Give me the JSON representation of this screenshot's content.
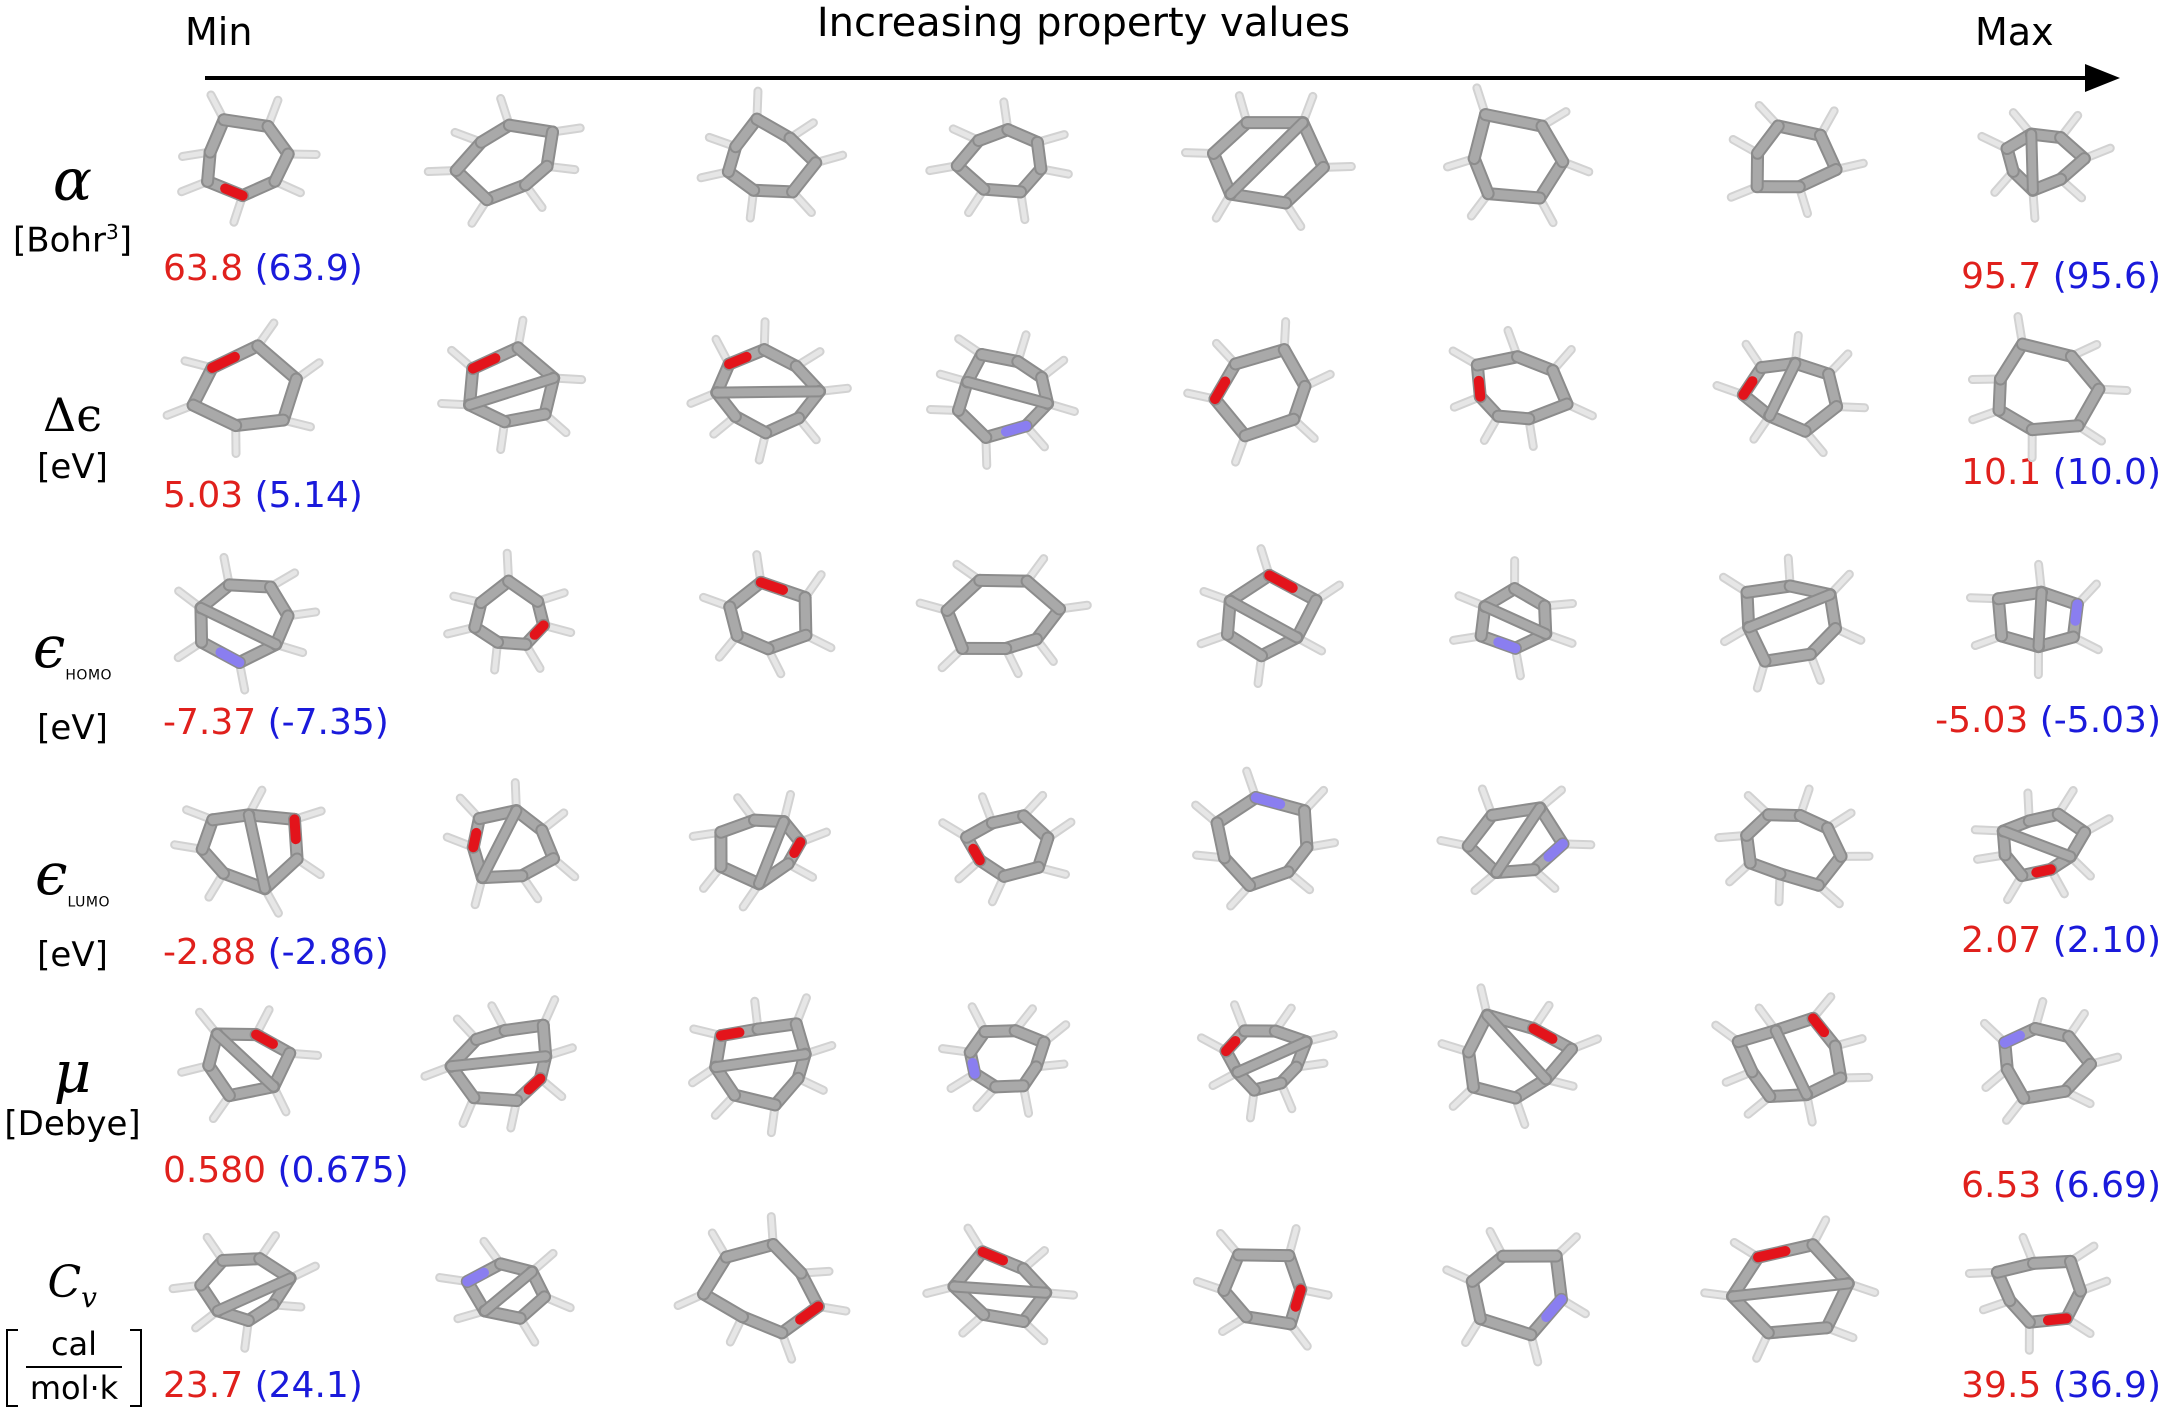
{
  "header": {
    "min_label": "Min",
    "max_label": "Max",
    "title": "Increasing property values"
  },
  "rows": [
    {
      "symbol": "α",
      "subscript": "",
      "unit": "[Bohr",
      "unit_sup": "3",
      "unit_tail": "]",
      "min_value": "63.8",
      "min_pred": "(63.9)",
      "max_value": "95.7",
      "max_pred": "(95.6)"
    },
    {
      "symbol": "Δϵ",
      "subscript": "",
      "unit": "[eV]",
      "unit_sup": "",
      "unit_tail": "",
      "min_value": "5.03",
      "min_pred": "(5.14)",
      "max_value": "10.1",
      "max_pred": "(10.0)"
    },
    {
      "symbol": "ϵ",
      "subscript": "HOMO",
      "unit": "[eV]",
      "unit_sup": "",
      "unit_tail": "",
      "min_value": "-7.37",
      "min_pred": "(-7.35)",
      "max_value": "-5.03",
      "max_pred": "(-5.03)"
    },
    {
      "symbol": "ϵ",
      "subscript": "LUMO",
      "unit": "[eV]",
      "unit_sup": "",
      "unit_tail": "",
      "min_value": "-2.88",
      "min_pred": "(-2.86)",
      "max_value": "2.07",
      "max_pred": "(2.10)"
    },
    {
      "symbol": "μ",
      "subscript": "",
      "unit": "[Debye]",
      "unit_sup": "",
      "unit_tail": "",
      "min_value": "0.580",
      "min_pred": "(0.675)",
      "max_value": "6.53",
      "max_pred": "(6.69)"
    },
    {
      "symbol": "C",
      "subscript": "v",
      "unit": "",
      "unit_sup": "",
      "unit_tail": "",
      "unit_num": "cal",
      "unit_den": "mol·k",
      "min_value": "23.7",
      "min_pred": "(24.1)",
      "max_value": "39.5",
      "max_pred": "(36.9)"
    }
  ],
  "colors": {
    "actual": "#e0201c",
    "predicted": "#1a1adb",
    "carbon_bond": "#a9a9a9",
    "hydrogen": "#e6e6e6",
    "oxygen": "#e3141b",
    "nitrogen": "#8a7ef0"
  }
}
